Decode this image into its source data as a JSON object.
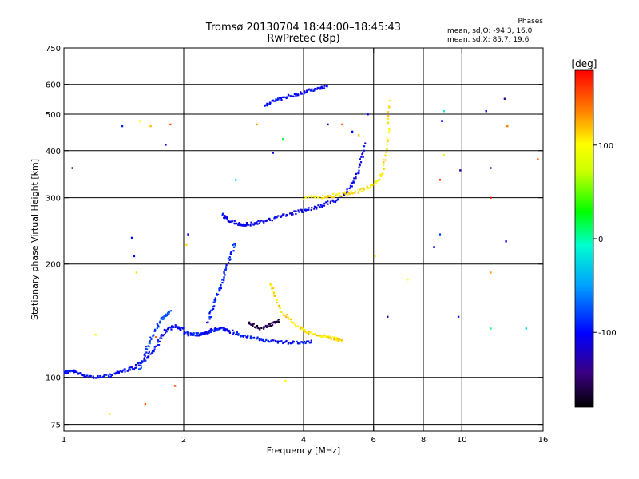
{
  "header": {
    "title_line1": "Tromsø 20130704 18:44:00–18:45:43",
    "title_line2": "RwPretec (8p)",
    "stats_title": "Phases",
    "stats_o": "mean, sd,O: -94.3, 16.0",
    "stats_x": "mean, sd,X:  85.7, 19.6"
  },
  "colorbar": {
    "unit_label": "[deg]",
    "range": [
      -180,
      180
    ],
    "ticks": [
      100,
      0,
      -100
    ]
  },
  "chart_data": {
    "type": "scatter",
    "title": "Tromsø 20130704 18:44:00–18:45:43",
    "subtitle": "RwPretec (8p)",
    "xlabel": "Frequency [MHz]",
    "ylabel": "Stationary phase Virtual Height [km]",
    "x_scale": "log",
    "y_scale": "log",
    "xlim": [
      1,
      16
    ],
    "ylim": [
      72,
      750
    ],
    "x_ticks": [
      1,
      2,
      4,
      6,
      8,
      10,
      16
    ],
    "y_ticks": [
      75,
      100,
      200,
      300,
      400,
      500,
      600,
      750
    ],
    "grid": true,
    "color_encoding": "phase [deg]",
    "traces": [
      {
        "x": [
          1.0,
          1.05,
          1.1,
          1.2,
          1.3,
          1.4,
          1.5,
          1.6,
          1.7,
          1.8,
          1.9,
          2.0
        ],
        "y": [
          103,
          104,
          102,
          100,
          101,
          104,
          106,
          112,
          120,
          133,
          137,
          134
        ],
        "phase": -100
      },
      {
        "x": [
          1.55,
          1.62,
          1.7,
          1.78,
          1.85
        ],
        "y": [
          105,
          120,
          135,
          145,
          150
        ],
        "phase": -80
      },
      {
        "x": [
          2.0,
          2.1,
          2.2,
          2.3,
          2.4,
          2.5,
          2.6,
          2.8,
          3.0,
          3.3,
          3.6,
          4.0,
          4.2
        ],
        "y": [
          131,
          130,
          130,
          132,
          134,
          135,
          133,
          129,
          127,
          125,
          124,
          124,
          125
        ],
        "phase": -95
      },
      {
        "x": [
          2.3,
          2.4,
          2.5,
          2.6,
          2.7
        ],
        "y": [
          140,
          160,
          180,
          205,
          230
        ],
        "phase": -90
      },
      {
        "x": [
          2.5,
          2.6,
          2.75,
          2.9,
          3.1,
          3.4,
          3.7,
          4.0,
          4.4,
          4.8,
          5.2,
          5.5,
          5.7
        ],
        "y": [
          270,
          262,
          255,
          255,
          258,
          265,
          272,
          278,
          285,
          295,
          315,
          350,
          420
        ],
        "phase": -105
      },
      {
        "x": [
          3.3,
          3.5,
          3.8,
          4.1,
          4.4,
          4.7,
          5.0
        ],
        "y": [
          178,
          150,
          138,
          132,
          129,
          127,
          126
        ],
        "phase": 110
      },
      {
        "x": [
          4.0,
          4.5,
          5.0,
          5.5,
          6.0,
          6.3,
          6.5,
          6.6
        ],
        "y": [
          300,
          302,
          306,
          312,
          325,
          345,
          420,
          550
        ],
        "phase": 105
      },
      {
        "x": [
          3.2,
          3.4,
          3.7,
          4.0,
          4.3,
          4.6
        ],
        "y": [
          530,
          545,
          560,
          572,
          585,
          595
        ],
        "phase": -100
      },
      {
        "x": [
          2.9,
          3.1,
          3.3,
          3.5
        ],
        "y": [
          140,
          135,
          138,
          142
        ],
        "phase": -160
      }
    ],
    "scattered_points": [
      {
        "x": 1.4,
        "y": 465,
        "phase": -90
      },
      {
        "x": 1.55,
        "y": 480,
        "phase": 100
      },
      {
        "x": 1.65,
        "y": 465,
        "phase": 120
      },
      {
        "x": 1.85,
        "y": 470,
        "phase": 150
      },
      {
        "x": 1.8,
        "y": 415,
        "phase": -110
      },
      {
        "x": 1.48,
        "y": 235,
        "phase": -100
      },
      {
        "x": 1.5,
        "y": 210,
        "phase": -100
      },
      {
        "x": 1.52,
        "y": 190,
        "phase": 110
      },
      {
        "x": 1.05,
        "y": 360,
        "phase": -150
      },
      {
        "x": 2.05,
        "y": 240,
        "phase": -100
      },
      {
        "x": 2.03,
        "y": 225,
        "phase": 110
      },
      {
        "x": 2.7,
        "y": 335,
        "phase": -20
      },
      {
        "x": 3.05,
        "y": 470,
        "phase": 130
      },
      {
        "x": 3.35,
        "y": 395,
        "phase": -110
      },
      {
        "x": 3.55,
        "y": 430,
        "phase": 20
      },
      {
        "x": 4.6,
        "y": 470,
        "phase": -120
      },
      {
        "x": 5.0,
        "y": 470,
        "phase": 150
      },
      {
        "x": 5.3,
        "y": 450,
        "phase": -100
      },
      {
        "x": 5.5,
        "y": 440,
        "phase": 120
      },
      {
        "x": 5.8,
        "y": 500,
        "phase": -100
      },
      {
        "x": 6.05,
        "y": 210,
        "phase": 100
      },
      {
        "x": 6.5,
        "y": 145,
        "phase": -120
      },
      {
        "x": 7.3,
        "y": 182,
        "phase": 100
      },
      {
        "x": 8.5,
        "y": 222,
        "phase": -110
      },
      {
        "x": 8.8,
        "y": 335,
        "phase": 170
      },
      {
        "x": 8.8,
        "y": 240,
        "phase": -80
      },
      {
        "x": 8.9,
        "y": 480,
        "phase": -100
      },
      {
        "x": 9.0,
        "y": 510,
        "phase": -20
      },
      {
        "x": 9.0,
        "y": 390,
        "phase": 80
      },
      {
        "x": 9.8,
        "y": 145,
        "phase": -90
      },
      {
        "x": 9.9,
        "y": 355,
        "phase": -130
      },
      {
        "x": 11.5,
        "y": 510,
        "phase": -110
      },
      {
        "x": 11.8,
        "y": 360,
        "phase": -120
      },
      {
        "x": 11.8,
        "y": 300,
        "phase": 170
      },
      {
        "x": 11.8,
        "y": 190,
        "phase": 130
      },
      {
        "x": 11.8,
        "y": 135,
        "phase": 10
      },
      {
        "x": 12.8,
        "y": 550,
        "phase": -140
      },
      {
        "x": 12.9,
        "y": 230,
        "phase": -100
      },
      {
        "x": 13.0,
        "y": 465,
        "phase": 140
      },
      {
        "x": 14.5,
        "y": 135,
        "phase": -30
      },
      {
        "x": 15.5,
        "y": 380,
        "phase": 150
      },
      {
        "x": 1.6,
        "y": 85,
        "phase": 150
      },
      {
        "x": 1.3,
        "y": 80,
        "phase": 110
      },
      {
        "x": 1.9,
        "y": 95,
        "phase": 160
      },
      {
        "x": 3.6,
        "y": 98,
        "phase": 100
      },
      {
        "x": 1.2,
        "y": 130,
        "phase": 100
      },
      {
        "x": 1.7,
        "y": 128,
        "phase": 150
      }
    ]
  }
}
